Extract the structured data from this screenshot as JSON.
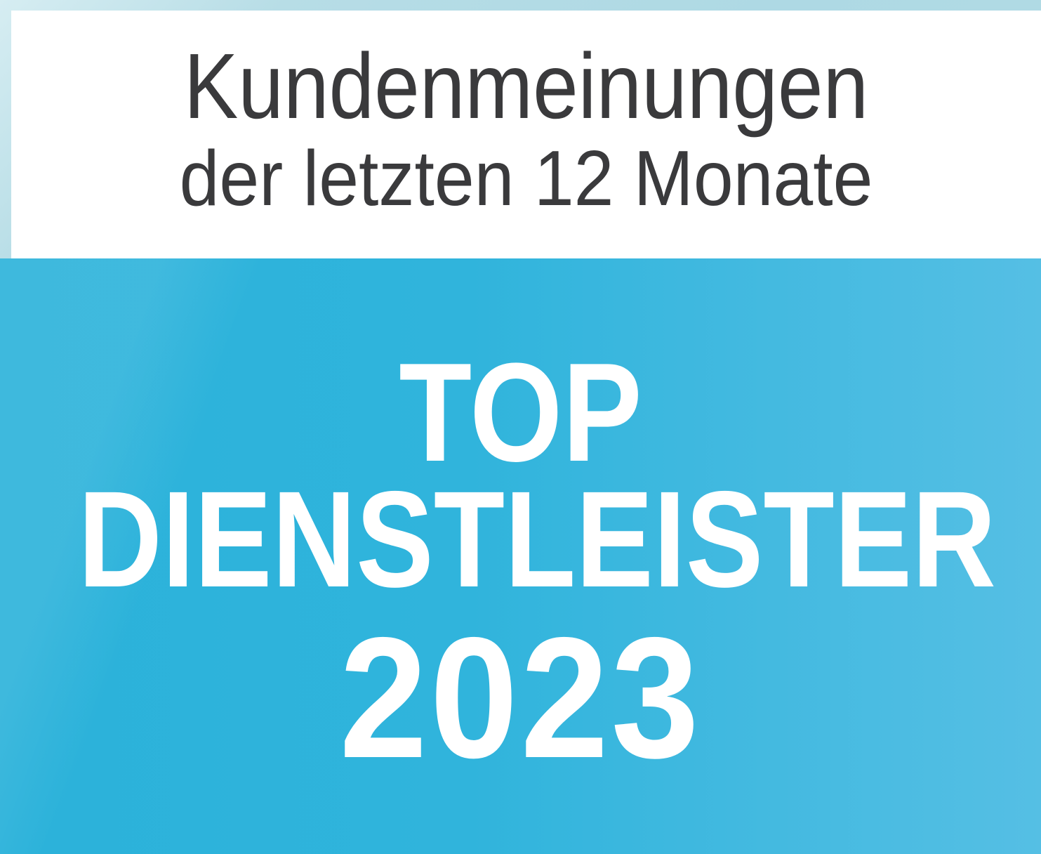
{
  "badge": {
    "header": {
      "line1": "Kundenmeinungen",
      "line2": "der letzten 12 Monate",
      "text_color": "#3a3a3c",
      "background_color": "#ffffff"
    },
    "seal": {
      "line1": "TOP",
      "line2": "DIENSTLEISTER",
      "line3": "2023",
      "text_color": "#ffffff",
      "background_gradient_left": "#2bb2da",
      "background_gradient_right": "#55bfe4"
    },
    "frame": {
      "color_light": "#d6edf2",
      "color_base": "#aed9e4"
    }
  }
}
